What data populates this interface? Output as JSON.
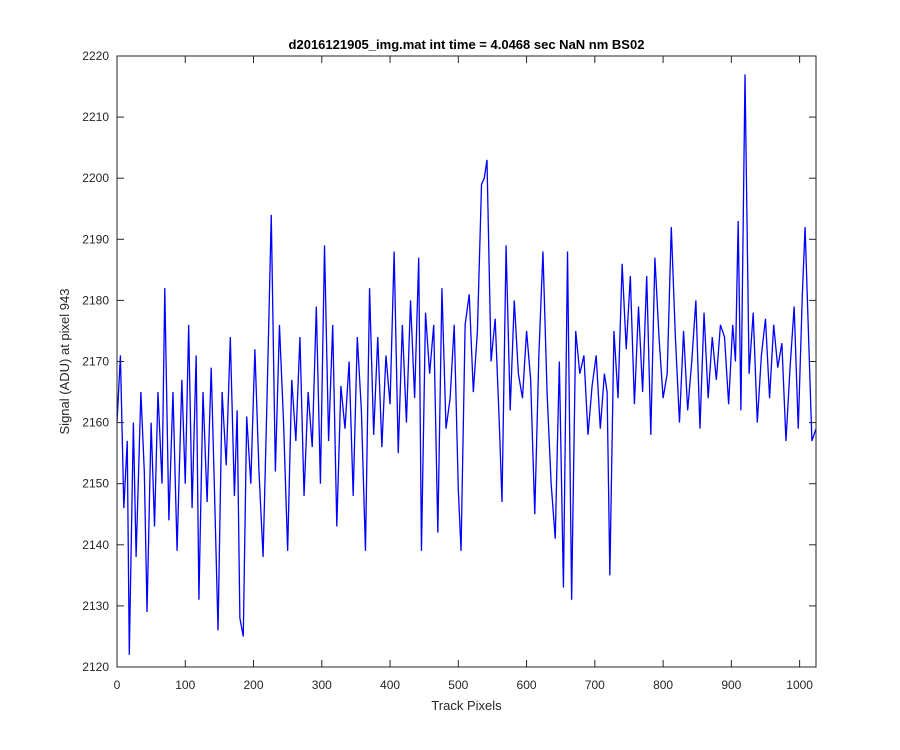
{
  "chart_data": {
    "type": "line",
    "title": "d2016121905_img.mat int time = 4.0468 sec  NaN nm BS02",
    "xlabel": "Track Pixels",
    "ylabel": "Signal (ADU) at pixel 943",
    "xlim": [
      0,
      1024
    ],
    "ylim": [
      2120,
      2220
    ],
    "xticks": [
      0,
      100,
      200,
      300,
      400,
      500,
      600,
      700,
      800,
      900,
      1000
    ],
    "yticks": [
      2120,
      2130,
      2140,
      2150,
      2160,
      2170,
      2180,
      2190,
      2200,
      2210,
      2220
    ],
    "grid": false,
    "box": true,
    "series": [
      {
        "color": "#0000ff",
        "points": [
          [
            0,
            2160
          ],
          [
            5,
            2171
          ],
          [
            10,
            2146
          ],
          [
            15,
            2157
          ],
          [
            18,
            2122
          ],
          [
            24,
            2160
          ],
          [
            28,
            2138
          ],
          [
            35,
            2165
          ],
          [
            40,
            2152
          ],
          [
            44,
            2129
          ],
          [
            50,
            2160
          ],
          [
            55,
            2143
          ],
          [
            60,
            2165
          ],
          [
            66,
            2150
          ],
          [
            70,
            2182
          ],
          [
            76,
            2144
          ],
          [
            82,
            2165
          ],
          [
            88,
            2139
          ],
          [
            95,
            2167
          ],
          [
            100,
            2150
          ],
          [
            105,
            2176
          ],
          [
            110,
            2146
          ],
          [
            116,
            2171
          ],
          [
            120,
            2131
          ],
          [
            126,
            2165
          ],
          [
            132,
            2147
          ],
          [
            138,
            2169
          ],
          [
            143,
            2148
          ],
          [
            148,
            2126
          ],
          [
            154,
            2165
          ],
          [
            160,
            2153
          ],
          [
            166,
            2174
          ],
          [
            172,
            2148
          ],
          [
            176,
            2162
          ],
          [
            180,
            2128
          ],
          [
            185,
            2125
          ],
          [
            190,
            2161
          ],
          [
            196,
            2150
          ],
          [
            202,
            2172
          ],
          [
            208,
            2152
          ],
          [
            214,
            2138
          ],
          [
            220,
            2165
          ],
          [
            226,
            2194
          ],
          [
            232,
            2152
          ],
          [
            238,
            2176
          ],
          [
            244,
            2160
          ],
          [
            250,
            2139
          ],
          [
            256,
            2167
          ],
          [
            262,
            2157
          ],
          [
            268,
            2174
          ],
          [
            274,
            2148
          ],
          [
            280,
            2165
          ],
          [
            286,
            2156
          ],
          [
            292,
            2179
          ],
          [
            298,
            2150
          ],
          [
            304,
            2189
          ],
          [
            310,
            2157
          ],
          [
            316,
            2176
          ],
          [
            322,
            2143
          ],
          [
            328,
            2166
          ],
          [
            334,
            2159
          ],
          [
            340,
            2170
          ],
          [
            346,
            2148
          ],
          [
            352,
            2174
          ],
          [
            358,
            2162
          ],
          [
            364,
            2139
          ],
          [
            370,
            2182
          ],
          [
            376,
            2158
          ],
          [
            382,
            2174
          ],
          [
            388,
            2156
          ],
          [
            394,
            2171
          ],
          [
            400,
            2163
          ],
          [
            406,
            2188
          ],
          [
            412,
            2155
          ],
          [
            418,
            2176
          ],
          [
            424,
            2160
          ],
          [
            430,
            2180
          ],
          [
            436,
            2164
          ],
          [
            442,
            2187
          ],
          [
            446,
            2139
          ],
          [
            452,
            2178
          ],
          [
            458,
            2168
          ],
          [
            464,
            2176
          ],
          [
            470,
            2142
          ],
          [
            476,
            2182
          ],
          [
            482,
            2159
          ],
          [
            488,
            2164
          ],
          [
            494,
            2176
          ],
          [
            500,
            2149
          ],
          [
            504,
            2139
          ],
          [
            510,
            2176
          ],
          [
            516,
            2181
          ],
          [
            522,
            2165
          ],
          [
            528,
            2175
          ],
          [
            534,
            2199
          ],
          [
            538,
            2200
          ],
          [
            542,
            2203
          ],
          [
            548,
            2170
          ],
          [
            554,
            2177
          ],
          [
            560,
            2160
          ],
          [
            564,
            2147
          ],
          [
            570,
            2189
          ],
          [
            576,
            2162
          ],
          [
            582,
            2180
          ],
          [
            588,
            2168
          ],
          [
            594,
            2164
          ],
          [
            600,
            2175
          ],
          [
            606,
            2167
          ],
          [
            612,
            2145
          ],
          [
            618,
            2171
          ],
          [
            624,
            2188
          ],
          [
            630,
            2165
          ],
          [
            636,
            2150
          ],
          [
            642,
            2141
          ],
          [
            648,
            2170
          ],
          [
            654,
            2133
          ],
          [
            660,
            2188
          ],
          [
            666,
            2131
          ],
          [
            672,
            2175
          ],
          [
            678,
            2168
          ],
          [
            684,
            2171
          ],
          [
            690,
            2158
          ],
          [
            696,
            2166
          ],
          [
            702,
            2171
          ],
          [
            708,
            2159
          ],
          [
            714,
            2168
          ],
          [
            718,
            2165
          ],
          [
            722,
            2135
          ],
          [
            728,
            2175
          ],
          [
            734,
            2164
          ],
          [
            740,
            2186
          ],
          [
            746,
            2172
          ],
          [
            752,
            2184
          ],
          [
            758,
            2163
          ],
          [
            764,
            2179
          ],
          [
            770,
            2165
          ],
          [
            776,
            2184
          ],
          [
            782,
            2158
          ],
          [
            788,
            2187
          ],
          [
            794,
            2174
          ],
          [
            800,
            2164
          ],
          [
            806,
            2168
          ],
          [
            812,
            2192
          ],
          [
            818,
            2174
          ],
          [
            824,
            2160
          ],
          [
            830,
            2175
          ],
          [
            836,
            2162
          ],
          [
            842,
            2170
          ],
          [
            848,
            2180
          ],
          [
            854,
            2159
          ],
          [
            860,
            2178
          ],
          [
            866,
            2164
          ],
          [
            872,
            2174
          ],
          [
            878,
            2167
          ],
          [
            884,
            2176
          ],
          [
            890,
            2174
          ],
          [
            896,
            2163
          ],
          [
            902,
            2176
          ],
          [
            906,
            2170
          ],
          [
            910,
            2193
          ],
          [
            914,
            2162
          ],
          [
            920,
            2217
          ],
          [
            926,
            2168
          ],
          [
            932,
            2178
          ],
          [
            938,
            2160
          ],
          [
            944,
            2171
          ],
          [
            950,
            2177
          ],
          [
            956,
            2164
          ],
          [
            962,
            2176
          ],
          [
            968,
            2169
          ],
          [
            974,
            2173
          ],
          [
            980,
            2157
          ],
          [
            986,
            2169
          ],
          [
            992,
            2179
          ],
          [
            998,
            2159
          ],
          [
            1004,
            2181
          ],
          [
            1008,
            2192
          ],
          [
            1014,
            2171
          ],
          [
            1018,
            2157
          ],
          [
            1024,
            2159
          ]
        ]
      }
    ]
  }
}
